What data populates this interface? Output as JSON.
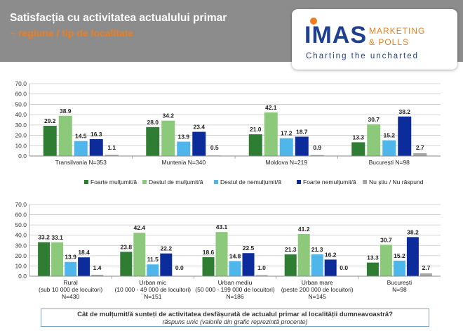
{
  "header": {
    "title": "Satisfacția cu activitatea actualului primar",
    "subtitle": "~ regiune / tip de localitate"
  },
  "logo": {
    "name": "IMAS",
    "line1": "MARKETING",
    "line2": "& POLLS",
    "tagline": "Charting the uncharted"
  },
  "colors": {
    "series": [
      "#2e7d32",
      "#8cc97a",
      "#4fb6ec",
      "#0d2c9b",
      "#a6a6a6"
    ]
  },
  "chart_data": [
    {
      "type": "bar",
      "ylim": [
        0,
        70
      ],
      "yticks": [
        "0.0",
        "10.0",
        "20.0",
        "30.0",
        "40.0",
        "50.0",
        "60.0",
        "70.0"
      ],
      "grid": true,
      "legend": "bottom",
      "categories": [
        [
          "Transilvania N=353"
        ],
        [
          "Muntenia N=340"
        ],
        [
          "Moldova N=219"
        ],
        [
          "București N=98"
        ]
      ],
      "series": [
        {
          "name": "Foarte mulțumit/ă",
          "values": [
            29.2,
            28.0,
            21.0,
            13.3
          ]
        },
        {
          "name": "Destul de mulțumit/ă",
          "values": [
            38.9,
            34.2,
            42.1,
            30.7
          ]
        },
        {
          "name": "Destul de nemulțumit/ă",
          "values": [
            14.5,
            13.9,
            17.2,
            15.2
          ]
        },
        {
          "name": "Foarte nemulțumit/ă",
          "values": [
            16.3,
            23.4,
            18.7,
            38.2
          ]
        },
        {
          "name": "Nu știu / Nu răspund",
          "values": [
            1.1,
            0.5,
            0.9,
            2.7
          ]
        }
      ]
    },
    {
      "type": "bar",
      "ylim": [
        0,
        70
      ],
      "yticks": [
        "0.0",
        "10.0",
        "20.0",
        "30.0",
        "40.0",
        "50.0",
        "60.0",
        "70.0"
      ],
      "grid": true,
      "categories": [
        [
          "Rural",
          "(sub 10 000 de locuitori)",
          "N=430"
        ],
        [
          "Urban mic",
          "(10 000 - 49 000 de locuitori)",
          "N=151"
        ],
        [
          "Urban mediu",
          "(50 000 - 199 000 de locuitori)",
          "N=186"
        ],
        [
          "Urban mare",
          "(peste 200 000 de locuitori)",
          "N=145"
        ],
        [
          "București",
          "N=98"
        ]
      ],
      "series": [
        {
          "name": "Foarte mulțumit/ă",
          "values": [
            33.2,
            23.8,
            18.6,
            21.3,
            13.3
          ]
        },
        {
          "name": "Destul de mulțumit/ă",
          "values": [
            33.1,
            42.4,
            43.1,
            41.2,
            30.7
          ]
        },
        {
          "name": "Destul de nemulțumit/ă",
          "values": [
            13.9,
            11.5,
            14.8,
            21.3,
            15.2
          ]
        },
        {
          "name": "Foarte nemulțumit/ă",
          "values": [
            18.4,
            22.2,
            22.5,
            16.2,
            38.2
          ]
        },
        {
          "name": "Nu știu / Nu răspund",
          "values": [
            1.4,
            0.0,
            1.0,
            0.0,
            2.7
          ]
        }
      ]
    }
  ],
  "footer": {
    "question": "Cât de mulțumit/ă sunteți de activitatea desfășurată de actualul primar al localității dumneavoastră?",
    "note": "răspuns unic (valorile din grafic reprezintă procente)"
  }
}
